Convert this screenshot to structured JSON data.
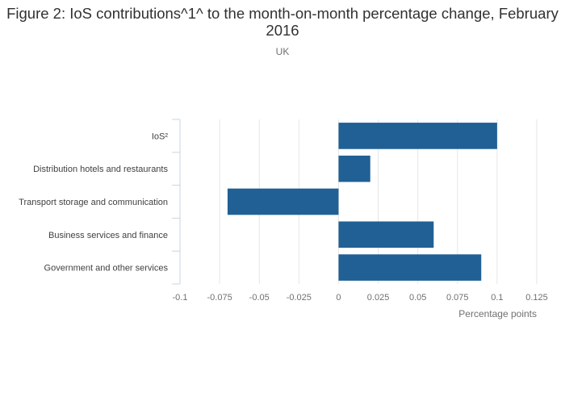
{
  "title": "Figure 2: IoS contributions^1^ to the month-on-month percentage change, February 2016",
  "subtitle": "UK",
  "colors": {
    "bar": "#206095",
    "grid": "#e6e6e6",
    "axis": "#c9d4e3"
  },
  "chart_data": {
    "type": "bar",
    "orientation": "horizontal",
    "categories": [
      "IoS²",
      "Distribution hotels and restaurants",
      "Transport storage and communication",
      "Business services and finance",
      "Government and other services"
    ],
    "values": [
      0.1,
      0.02,
      -0.07,
      0.06,
      0.09
    ],
    "xlabel": "Percentage points",
    "ylabel": "",
    "xlim": [
      -0.1,
      0.125
    ],
    "xticks": [
      -0.1,
      -0.075,
      -0.05,
      -0.025,
      0,
      0.025,
      0.05,
      0.075,
      0.1,
      0.125
    ],
    "xtick_labels": [
      "-0.1",
      "-0.075",
      "-0.05",
      "-0.025",
      "0",
      "0.025",
      "0.05",
      "0.075",
      "0.1",
      "0.125"
    ],
    "grid": "vertical",
    "legend": "none"
  }
}
